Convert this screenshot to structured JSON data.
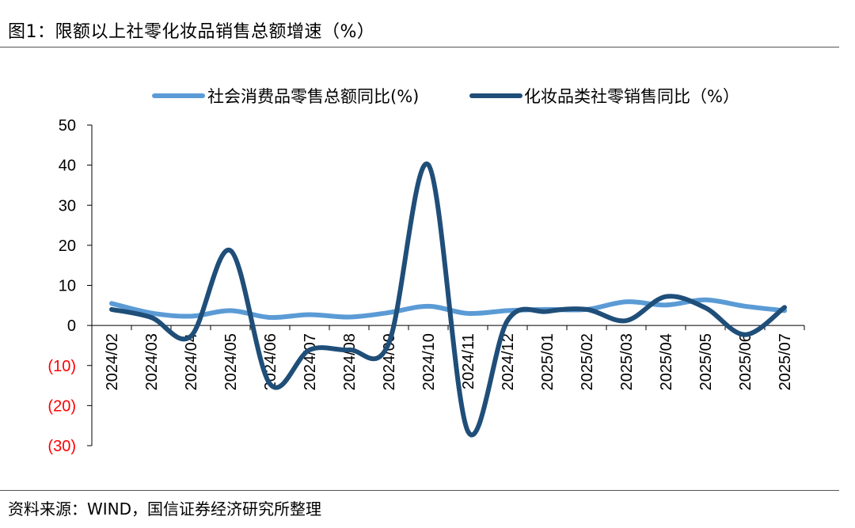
{
  "header": {
    "title": "图1：限额以上社零化妆品销售总额增速（%）"
  },
  "footer": {
    "source": "资料来源：WIND，国信证券经济研究所整理"
  },
  "colors": {
    "series_light": "#5b9bd5",
    "series_dark": "#1f4e79",
    "negative_label": "#ff0000",
    "axis": "#000000"
  },
  "chart_data": {
    "type": "line",
    "title": "",
    "xlabel": "",
    "ylabel": "",
    "ylim": [
      -30,
      50
    ],
    "yticks": [
      50,
      40,
      30,
      20,
      10,
      0,
      -10,
      -20,
      -30
    ],
    "ytick_labels": [
      "50",
      "40",
      "30",
      "20",
      "10",
      "0",
      "(10)",
      "(20)",
      "(30)"
    ],
    "negative_tick_color": "#ff0000",
    "grid": false,
    "legend_position": "top",
    "categories": [
      "2024/02",
      "2024/03",
      "2024/04",
      "2024/05",
      "2024/06",
      "2024/07",
      "2024/08",
      "2024/09",
      "2024/10",
      "2024/11",
      "2024/12",
      "2025/01",
      "2025/02",
      "2025/03",
      "2025/04",
      "2025/05",
      "2025/06",
      "2025/07"
    ],
    "series": [
      {
        "name": "社会消费品零售总额同比(%)",
        "color": "#5b9bd5",
        "values": [
          5.5,
          3.1,
          2.3,
          3.7,
          2.0,
          2.7,
          2.1,
          3.2,
          4.8,
          3.0,
          3.7,
          4.0,
          4.0,
          5.9,
          5.1,
          6.4,
          4.8,
          3.7
        ]
      },
      {
        "name": "化妆品类社零销售同比（%）",
        "color": "#1f4e79",
        "values": [
          4.0,
          2.0,
          -2.7,
          18.7,
          -14.6,
          -6.1,
          -6.1,
          -4.5,
          40.1,
          -26.4,
          1.2,
          3.5,
          4.0,
          1.2,
          7.2,
          4.4,
          -2.3,
          4.5
        ]
      }
    ]
  }
}
